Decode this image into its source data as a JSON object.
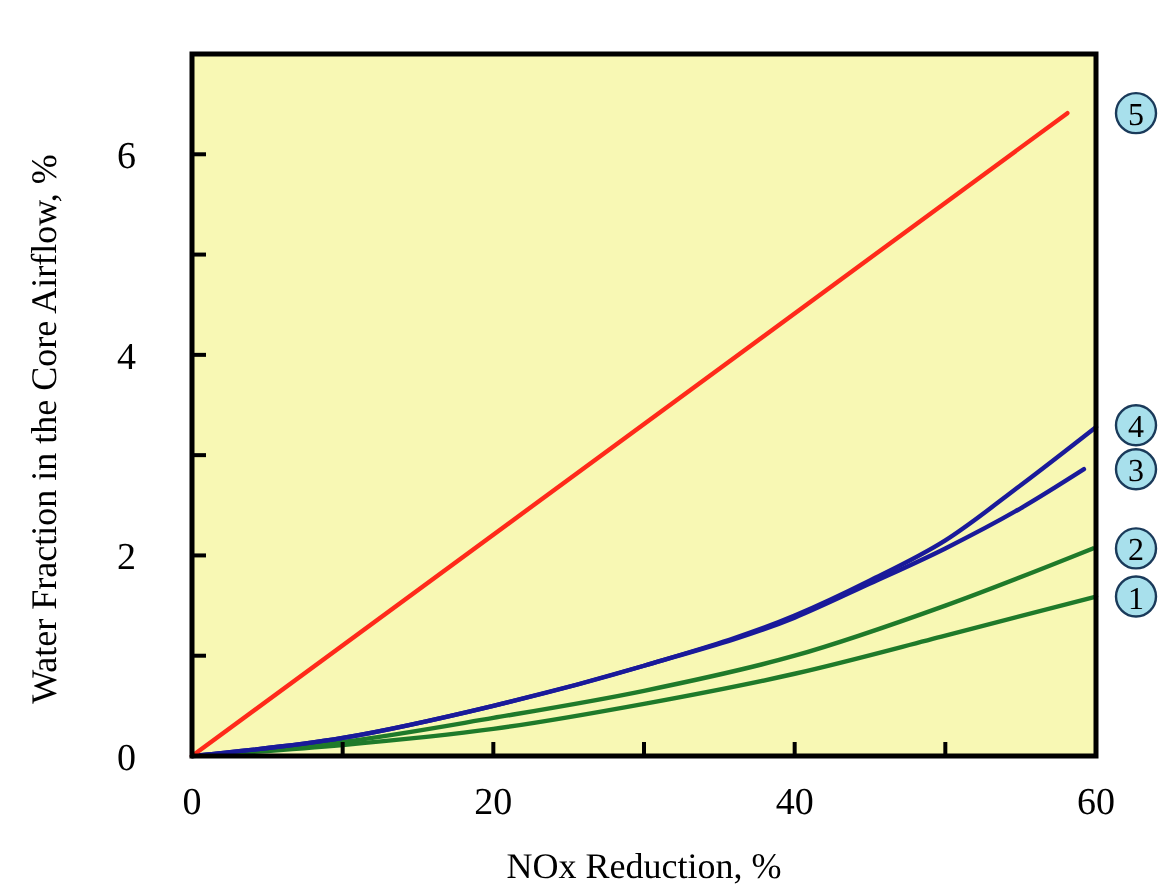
{
  "chart_data": {
    "type": "line",
    "xlabel": "NOx Reduction, %",
    "ylabel": "Water Fraction in the Core Airflow, %",
    "xlim": [
      0,
      60
    ],
    "ylim": [
      0,
      7
    ],
    "xticks": [
      0,
      {
        "value": 10,
        "label": null
      },
      20,
      {
        "value": 30,
        "label": null
      },
      40,
      {
        "value": 50,
        "label": null
      },
      60
    ],
    "yticks": [
      0,
      {
        "value": 1,
        "label": null
      },
      2,
      {
        "value": 3,
        "label": null
      },
      4,
      {
        "value": 5,
        "label": null
      },
      6
    ],
    "grid": false,
    "marker": "none",
    "line_style": "solid",
    "legend": "right",
    "series": [
      {
        "name": "1",
        "color": "#1f7a2a",
        "x": [
          0,
          10,
          20,
          30,
          40,
          50,
          60
        ],
        "values": [
          0,
          0.11,
          0.27,
          0.52,
          0.82,
          1.2,
          1.59
        ]
      },
      {
        "name": "2",
        "color": "#1f7a2a",
        "x": [
          0,
          10,
          20,
          30,
          40,
          50,
          59.8
        ],
        "values": [
          0,
          0.14,
          0.38,
          0.65,
          1.0,
          1.5,
          2.07
        ]
      },
      {
        "name": "3",
        "color": "#1a1a9a",
        "x": [
          0,
          10,
          20,
          30,
          40,
          45,
          50,
          55,
          59.2
        ],
        "values": [
          0,
          0.18,
          0.5,
          0.9,
          1.38,
          1.72,
          2.07,
          2.47,
          2.86
        ]
      },
      {
        "name": "4",
        "color": "#1a1a9a",
        "x": [
          0,
          10,
          20,
          30,
          40,
          45,
          50,
          55,
          60
        ],
        "values": [
          0,
          0.18,
          0.5,
          0.9,
          1.4,
          1.75,
          2.15,
          2.7,
          3.28
        ]
      },
      {
        "name": "5",
        "color": "#ff2a1a",
        "x": [
          0,
          58.1
        ],
        "values": [
          0,
          6.41
        ]
      }
    ]
  }
}
